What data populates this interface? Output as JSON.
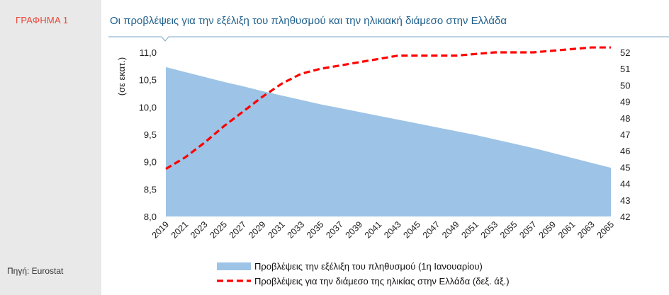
{
  "figure_label": "ΓΡΑΦΗΜΑ 1",
  "source": "Πηγή: Eurostat",
  "chart_data": {
    "type": "area",
    "title": "Οι προβλέψεις για την εξέλιξη του πληθυσμού και την ηλικιακή διάμεσο στην Ελλάδα",
    "ylabel": "(σε εκατ.)",
    "ylim": [
      8.0,
      11.0
    ],
    "yticks": [
      "8,0",
      "8,5",
      "9,0",
      "9,5",
      "10,0",
      "10,5",
      "11,0"
    ],
    "y2lim": [
      42,
      52
    ],
    "y2ticks": [
      "42",
      "43",
      "44",
      "45",
      "46",
      "47",
      "48",
      "49",
      "50",
      "51",
      "52"
    ],
    "x": [
      "2019",
      "2021",
      "2023",
      "2025",
      "2027",
      "2029",
      "2031",
      "2033",
      "2035",
      "2037",
      "2039",
      "2041",
      "2043",
      "2045",
      "2047",
      "2049",
      "2051",
      "2053",
      "2055",
      "2057",
      "2059",
      "2061",
      "2063",
      "2065"
    ],
    "legend_position": "bottom",
    "series": [
      {
        "name": "Προβλέψεις την εξέλιξη  του πληθυσμού (1η Ιανουαρίου)",
        "axis": "left",
        "style": "area",
        "color": "#9dc3e6",
        "values": [
          10.73,
          10.64,
          10.55,
          10.46,
          10.38,
          10.29,
          10.21,
          10.13,
          10.05,
          9.98,
          9.91,
          9.84,
          9.77,
          9.7,
          9.63,
          9.56,
          9.49,
          9.41,
          9.33,
          9.25,
          9.16,
          9.07,
          8.98,
          8.89
        ]
      },
      {
        "name": "Προβλέψεις για την διάμεσο της ηλικίας στην Ελλάδα  (δεξ. άξ.)",
        "axis": "right",
        "style": "dashed-line",
        "color": "#ff0000",
        "values": [
          44.9,
          45.6,
          46.5,
          47.5,
          48.4,
          49.3,
          50.1,
          50.7,
          51.0,
          51.2,
          51.4,
          51.6,
          51.8,
          51.8,
          51.8,
          51.8,
          51.9,
          52.0,
          52.0,
          52.0,
          52.1,
          52.2,
          52.3,
          52.3
        ]
      }
    ]
  }
}
